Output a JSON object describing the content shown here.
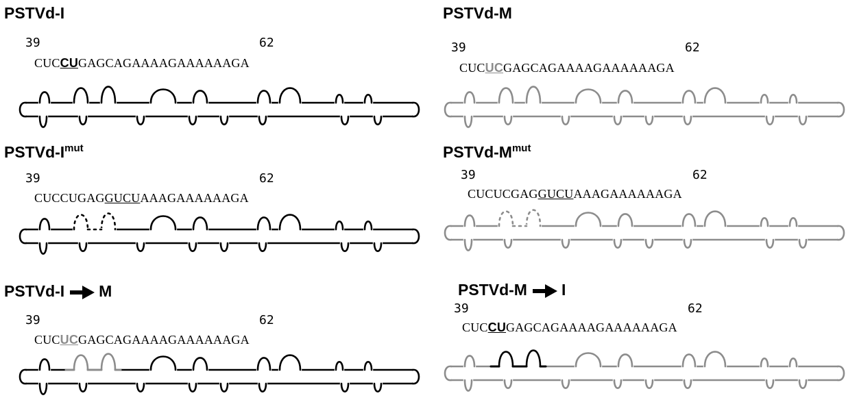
{
  "colors": {
    "black": "#000000",
    "gray": "#8c8c8c"
  },
  "panels": [
    {
      "id": "pstvd-i",
      "title": "PSTVd-I",
      "sup": "",
      "arrow_to": "",
      "pos_start": "39",
      "pos_end": "62",
      "seq_pre": "CUC",
      "seq_mut": "CU",
      "seq_mid": "",
      "seq_ul": "",
      "seq_post": "GAGCAGAAAAGAAAAAAGA",
      "color": "black",
      "mut_color": "black"
    },
    {
      "id": "pstvd-m",
      "title": "PSTVd-M",
      "sup": "",
      "arrow_to": "",
      "pos_start": "39",
      "pos_end": "62",
      "seq_pre": "CUC",
      "seq_mut": "UC",
      "seq_mid": "",
      "seq_ul": "",
      "seq_post": "GAGCAGAAAAGAAAAAAGA",
      "color": "gray",
      "mut_color": "gray"
    },
    {
      "id": "pstvd-i-mut",
      "title": "PSTVd-I",
      "sup": "mut",
      "arrow_to": "",
      "pos_start": "39",
      "pos_end": "62",
      "seq_pre": "CUCCUGAG",
      "seq_mut": "",
      "seq_mid": "",
      "seq_ul": "GUCU",
      "seq_post": "AAAGAAAAAAGA",
      "color": "black",
      "mut_color": "black"
    },
    {
      "id": "pstvd-m-mut",
      "title": "PSTVd-M",
      "sup": "mut",
      "arrow_to": "",
      "pos_start": "39",
      "pos_end": "62",
      "seq_pre": "CUCUCGAG",
      "seq_mut": "",
      "seq_mid": "",
      "seq_ul": "GUCU",
      "seq_post": "AAAGAAAAAAGA",
      "color": "gray",
      "mut_color": "gray"
    },
    {
      "id": "pstvd-i-to-m",
      "title": "PSTVd-I",
      "sup": "",
      "arrow_to": "M",
      "pos_start": "39",
      "pos_end": "62",
      "seq_pre": "CUC",
      "seq_mut": "UC",
      "seq_mid": "",
      "seq_ul": "",
      "seq_post": "GAGCAGAAAAGAAAAAAGA",
      "color": "black",
      "mut_color": "gray"
    },
    {
      "id": "pstvd-m-to-i",
      "title": "PSTVd-M",
      "sup": "",
      "arrow_to": "I",
      "pos_start": "39",
      "pos_end": "62",
      "seq_pre": "CUC",
      "seq_mut": "CU",
      "seq_mid": "",
      "seq_ul": "",
      "seq_post": "GAGCAGAAAAGAAAAAAGA",
      "color": "gray",
      "mut_color": "black"
    }
  ]
}
